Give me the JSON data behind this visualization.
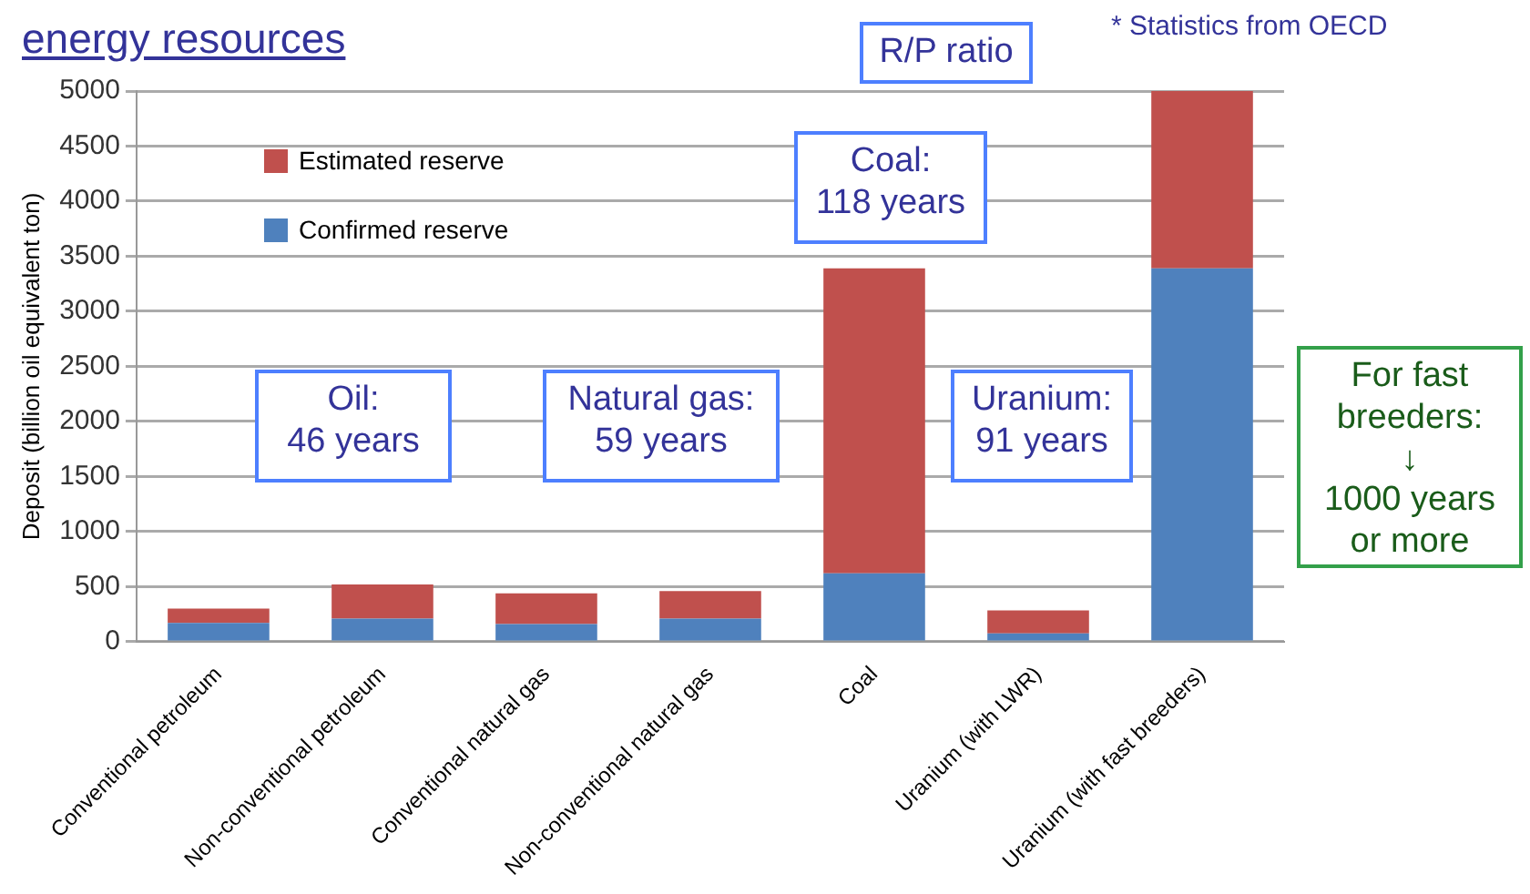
{
  "chart_data": {
    "type": "bar",
    "title": "energy resources",
    "ylabel": "Deposit (billion oil equivalent ton)",
    "categories": [
      "Conventional petroleum",
      "Non-conventional petroleum",
      "Conventional natural gas",
      "Non-conventional natural gas",
      "Coal",
      "Uranium (with LWR)",
      "Uranium (with fast breeders)"
    ],
    "series": [
      {
        "name": "Confirmed reserve",
        "color": "#4f81bd",
        "values": [
          170,
          210,
          160,
          210,
          620,
          75,
          3390
        ]
      },
      {
        "name": "Estimated reserve",
        "color": "#c0504d",
        "values": [
          130,
          310,
          280,
          250,
          2770,
          210,
          1610
        ]
      }
    ],
    "stacked": true,
    "ylim": [
      0,
      5000
    ],
    "yticks": [
      0,
      500,
      1000,
      1500,
      2000,
      2500,
      3000,
      3500,
      4000,
      4500,
      5000
    ],
    "grid": "y",
    "legend": "top left",
    "annotations": [
      "R/P ratio",
      "* Statistics from OECD",
      "Oil:\n46 years",
      "Natural gas:\n59 years",
      "Coal:\n118 years",
      "Uranium:\n91 years",
      "For fast\nbreeders:\n↓\n1000 years\nor more"
    ]
  }
}
